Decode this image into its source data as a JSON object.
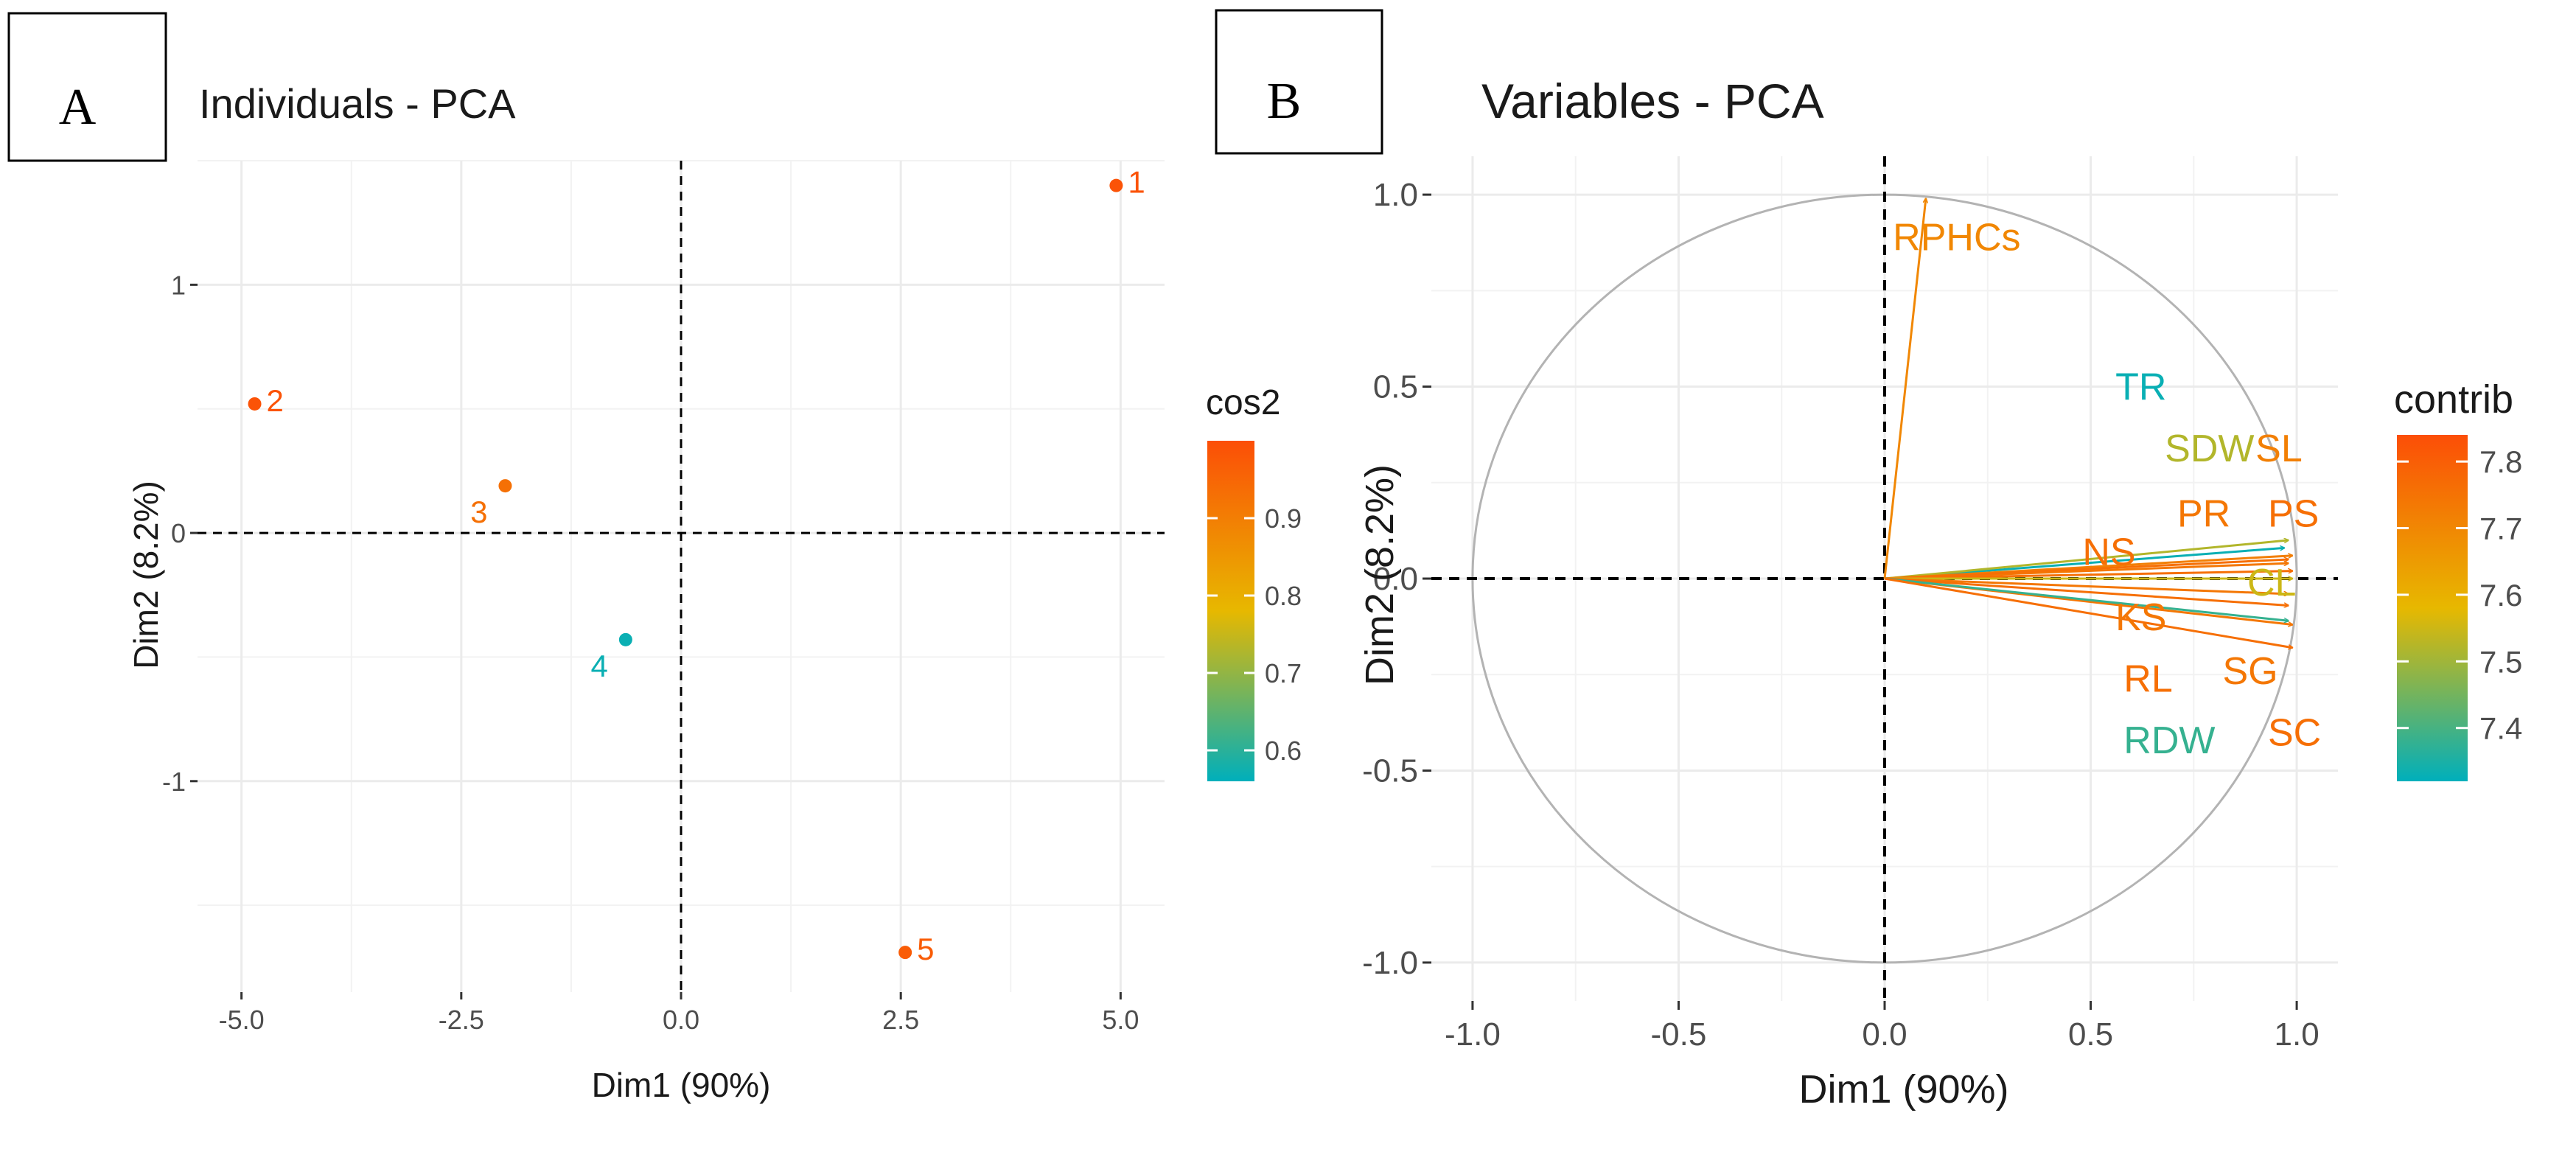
{
  "panels": [
    {
      "label": "A",
      "title": "Individuals - PCA",
      "xlabel": "Dim1 (90%)",
      "ylabel": "Dim2 (8.2%)",
      "legend_title": "cos2"
    },
    {
      "label": "B",
      "title": "Variables - PCA",
      "xlabel": "Dim1 (90%)",
      "ylabel": "Dim2 (8.2%)",
      "legend_title": "contrib"
    }
  ],
  "chart_data": [
    {
      "type": "scatter",
      "title": "Individuals - PCA",
      "xlabel": "Dim1 (90%)",
      "ylabel": "Dim2 (8.2%)",
      "xlim": [
        -5.5,
        5.5
      ],
      "ylim": [
        -1.85,
        1.5
      ],
      "xticks": [
        -5.0,
        -2.5,
        0.0,
        2.5,
        5.0
      ],
      "xtick_labels": [
        "-5.0",
        "-2.5",
        "0.0",
        "2.5",
        "5.0"
      ],
      "yticks": [
        -1,
        0,
        1
      ],
      "ytick_labels": [
        "-1",
        "0",
        "1"
      ],
      "color_by": "cos2",
      "points": [
        {
          "label": "1",
          "x": 4.95,
          "y": 1.4,
          "cos2": 0.99
        },
        {
          "label": "2",
          "x": -4.85,
          "y": 0.52,
          "cos2": 0.99
        },
        {
          "label": "3",
          "x": -2.0,
          "y": 0.19,
          "cos2": 0.93
        },
        {
          "label": "4",
          "x": -0.63,
          "y": -0.43,
          "cos2": 0.57
        },
        {
          "label": "5",
          "x": 2.55,
          "y": -1.69,
          "cos2": 0.97
        }
      ],
      "legend": {
        "title": "cos2",
        "ticks": [
          0.6,
          0.7,
          0.8,
          0.9
        ],
        "tick_labels": [
          "0.6",
          "0.7",
          "0.8",
          "0.9"
        ],
        "range": [
          0.56,
          1.0
        ],
        "colors": [
          "#00AFBB",
          "#E7B800",
          "#FC4E07"
        ]
      }
    },
    {
      "type": "scatter",
      "title": "Variables - PCA",
      "xlabel": "Dim1 (90%)",
      "ylabel": "Dim2 (8.2%)",
      "xlim": [
        -1.1,
        1.1
      ],
      "ylim": [
        -1.1,
        1.1
      ],
      "xticks": [
        -1.0,
        -0.5,
        0.0,
        0.5,
        1.0
      ],
      "xtick_labels": [
        "-1.0",
        "-0.5",
        "0.0",
        "0.5",
        "1.0"
      ],
      "yticks": [
        -1.0,
        -0.5,
        0.0,
        0.5,
        1.0
      ],
      "ytick_labels": [
        "-1.0",
        "-0.5",
        "0.0",
        "0.5",
        "1.0"
      ],
      "color_by": "contrib",
      "correlation_circle": true,
      "arrows": [
        {
          "label": "RPHCs",
          "x": 0.1,
          "y": 0.99,
          "contrib": 7.7,
          "lx": 0.02,
          "ly": 0.89
        },
        {
          "label": "TR",
          "x": 0.97,
          "y": 0.08,
          "contrib": 7.33,
          "lx": 0.56,
          "ly": 0.5
        },
        {
          "label": "SDW",
          "x": 0.98,
          "y": 0.1,
          "contrib": 7.52,
          "lx": 0.68,
          "ly": 0.34
        },
        {
          "label": "SL",
          "x": 0.99,
          "y": 0.06,
          "contrib": 7.72,
          "lx": 0.9,
          "ly": 0.34
        },
        {
          "label": "PR",
          "x": 0.98,
          "y": 0.04,
          "contrib": 7.74,
          "lx": 0.71,
          "ly": 0.17
        },
        {
          "label": "PS",
          "x": 0.99,
          "y": 0.02,
          "contrib": 7.76,
          "lx": 0.93,
          "ly": 0.17
        },
        {
          "label": "NS",
          "x": 0.98,
          "y": 0.05,
          "contrib": 7.76,
          "lx": 0.48,
          "ly": 0.07
        },
        {
          "label": "CL",
          "x": 0.99,
          "y": 0.0,
          "contrib": 7.55,
          "lx": 0.88,
          "ly": -0.01
        },
        {
          "label": "KS",
          "x": 0.98,
          "y": -0.04,
          "contrib": 7.74,
          "lx": 0.56,
          "ly": -0.1
        },
        {
          "label": "RL",
          "x": 0.98,
          "y": -0.07,
          "contrib": 7.76,
          "lx": 0.58,
          "ly": -0.26
        },
        {
          "label": "SG",
          "x": 0.99,
          "y": -0.12,
          "contrib": 7.74,
          "lx": 0.82,
          "ly": -0.24
        },
        {
          "label": "RDW",
          "x": 0.98,
          "y": -0.11,
          "contrib": 7.38,
          "lx": 0.58,
          "ly": -0.42
        },
        {
          "label": "SC",
          "x": 0.99,
          "y": -0.18,
          "contrib": 7.76,
          "lx": 0.93,
          "ly": -0.4
        }
      ],
      "legend": {
        "title": "contrib",
        "ticks": [
          7.4,
          7.5,
          7.6,
          7.7,
          7.8
        ],
        "tick_labels": [
          "7.4",
          "7.5",
          "7.6",
          "7.7",
          "7.8"
        ],
        "range": [
          7.32,
          7.84
        ],
        "colors": [
          "#00AFBB",
          "#E7B800",
          "#FC4E07"
        ]
      }
    }
  ]
}
